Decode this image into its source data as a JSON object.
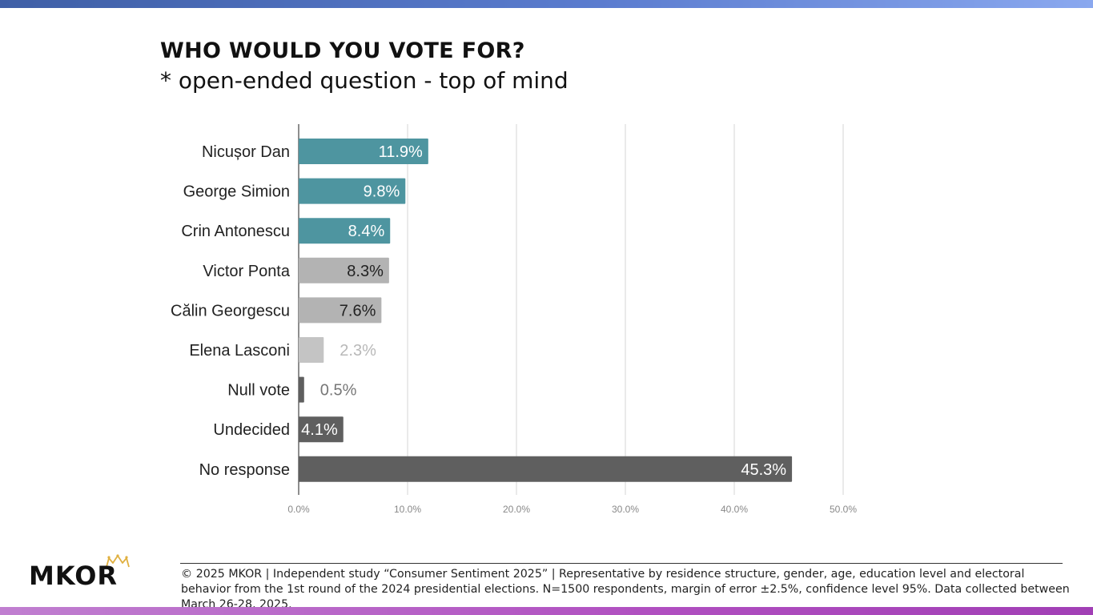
{
  "header": {
    "title": "WHO WOULD YOU VOTE FOR?",
    "subtitle": "* open-ended question - top of mind"
  },
  "chart_data": {
    "type": "bar",
    "orientation": "horizontal",
    "categories": [
      "Nicușor Dan",
      "George Simion",
      "Crin Antonescu",
      "Victor Ponta",
      "Călin Georgescu",
      "Elena Lasconi",
      "Null vote",
      "Undecided",
      "No response"
    ],
    "values": [
      11.9,
      9.8,
      8.4,
      8.3,
      7.6,
      2.3,
      0.5,
      4.1,
      45.3
    ],
    "data_labels": [
      "11.9%",
      "9.8%",
      "8.4%",
      "8.3%",
      "7.6%",
      "2.3%",
      "0.5%",
      "4.1%",
      "45.3%"
    ],
    "bar_colors": [
      "#4e95a0",
      "#4e95a0",
      "#4e95a0",
      "#b3b3b3",
      "#b3b3b3",
      "#c4c4c4",
      "#5f5f5f",
      "#5f5f5f",
      "#5f5f5f"
    ],
    "label_colors": [
      "#ffffff",
      "#ffffff",
      "#ffffff",
      "#222222",
      "#222222",
      "#b8b8b8",
      "#777777",
      "#ffffff",
      "#ffffff"
    ],
    "label_inside": [
      true,
      true,
      true,
      true,
      true,
      false,
      false,
      true,
      true
    ],
    "xlim": [
      0,
      50
    ],
    "xticks": [
      0,
      10,
      20,
      30,
      40,
      50
    ],
    "xtick_labels": [
      "0.0%",
      "10.0%",
      "20.0%",
      "30.0%",
      "40.0%",
      "50.0%"
    ],
    "grid": true
  },
  "logo": {
    "text": "MKOR",
    "crown_color": "#e0b040"
  },
  "footer": {
    "text": "© 2025 MKOR | Independent study “Consumer Sentiment 2025” | Representative by residence structure, gender, age, education level and electoral behavior from the 1st round of the 2024 presidential elections. N=1500 respondents, margin of error ±2.5%, confidence level 95%. Data collected between March 26-28, 2025."
  },
  "colors": {
    "top_bar": "#4f6fbf",
    "bottom_bar": "#b04fc0"
  }
}
